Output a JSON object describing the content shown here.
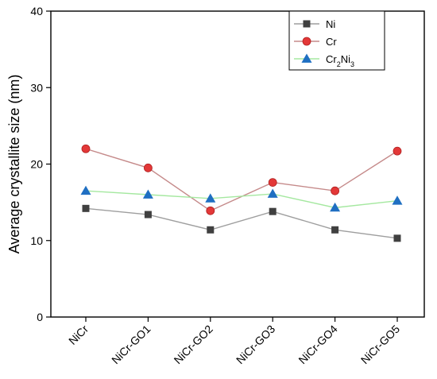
{
  "chart_data": {
    "type": "line",
    "ylabel": "Average crystallite size (nm)",
    "xlabel": "",
    "ylim": [
      0,
      40
    ],
    "yticks": [
      0,
      10,
      20,
      30,
      40
    ],
    "categories": [
      "NiCr",
      "NiCr-GO1",
      "NiCr-GO2",
      "NiCr-GO3",
      "NiCr-GO4",
      "NiCr-GO5"
    ],
    "legend_position": "top-right",
    "grid": false,
    "series": [
      {
        "name": "Ni",
        "marker": "square",
        "marker_color": "#404040",
        "line_color": "#9e9e9e",
        "values": [
          14.2,
          13.4,
          11.4,
          13.8,
          11.4,
          10.3
        ]
      },
      {
        "name": "Cr",
        "marker": "circle",
        "marker_color": "#e33838",
        "line_color": "#c58a8a",
        "values": [
          22.0,
          19.5,
          13.9,
          17.6,
          16.5,
          21.7
        ]
      },
      {
        "name": "Cr2Ni3",
        "marker": "triangle",
        "marker_color": "#1f6fc2",
        "line_color": "#a5e8a0",
        "values": [
          16.5,
          16.0,
          15.5,
          16.1,
          14.3,
          15.2
        ]
      }
    ]
  }
}
